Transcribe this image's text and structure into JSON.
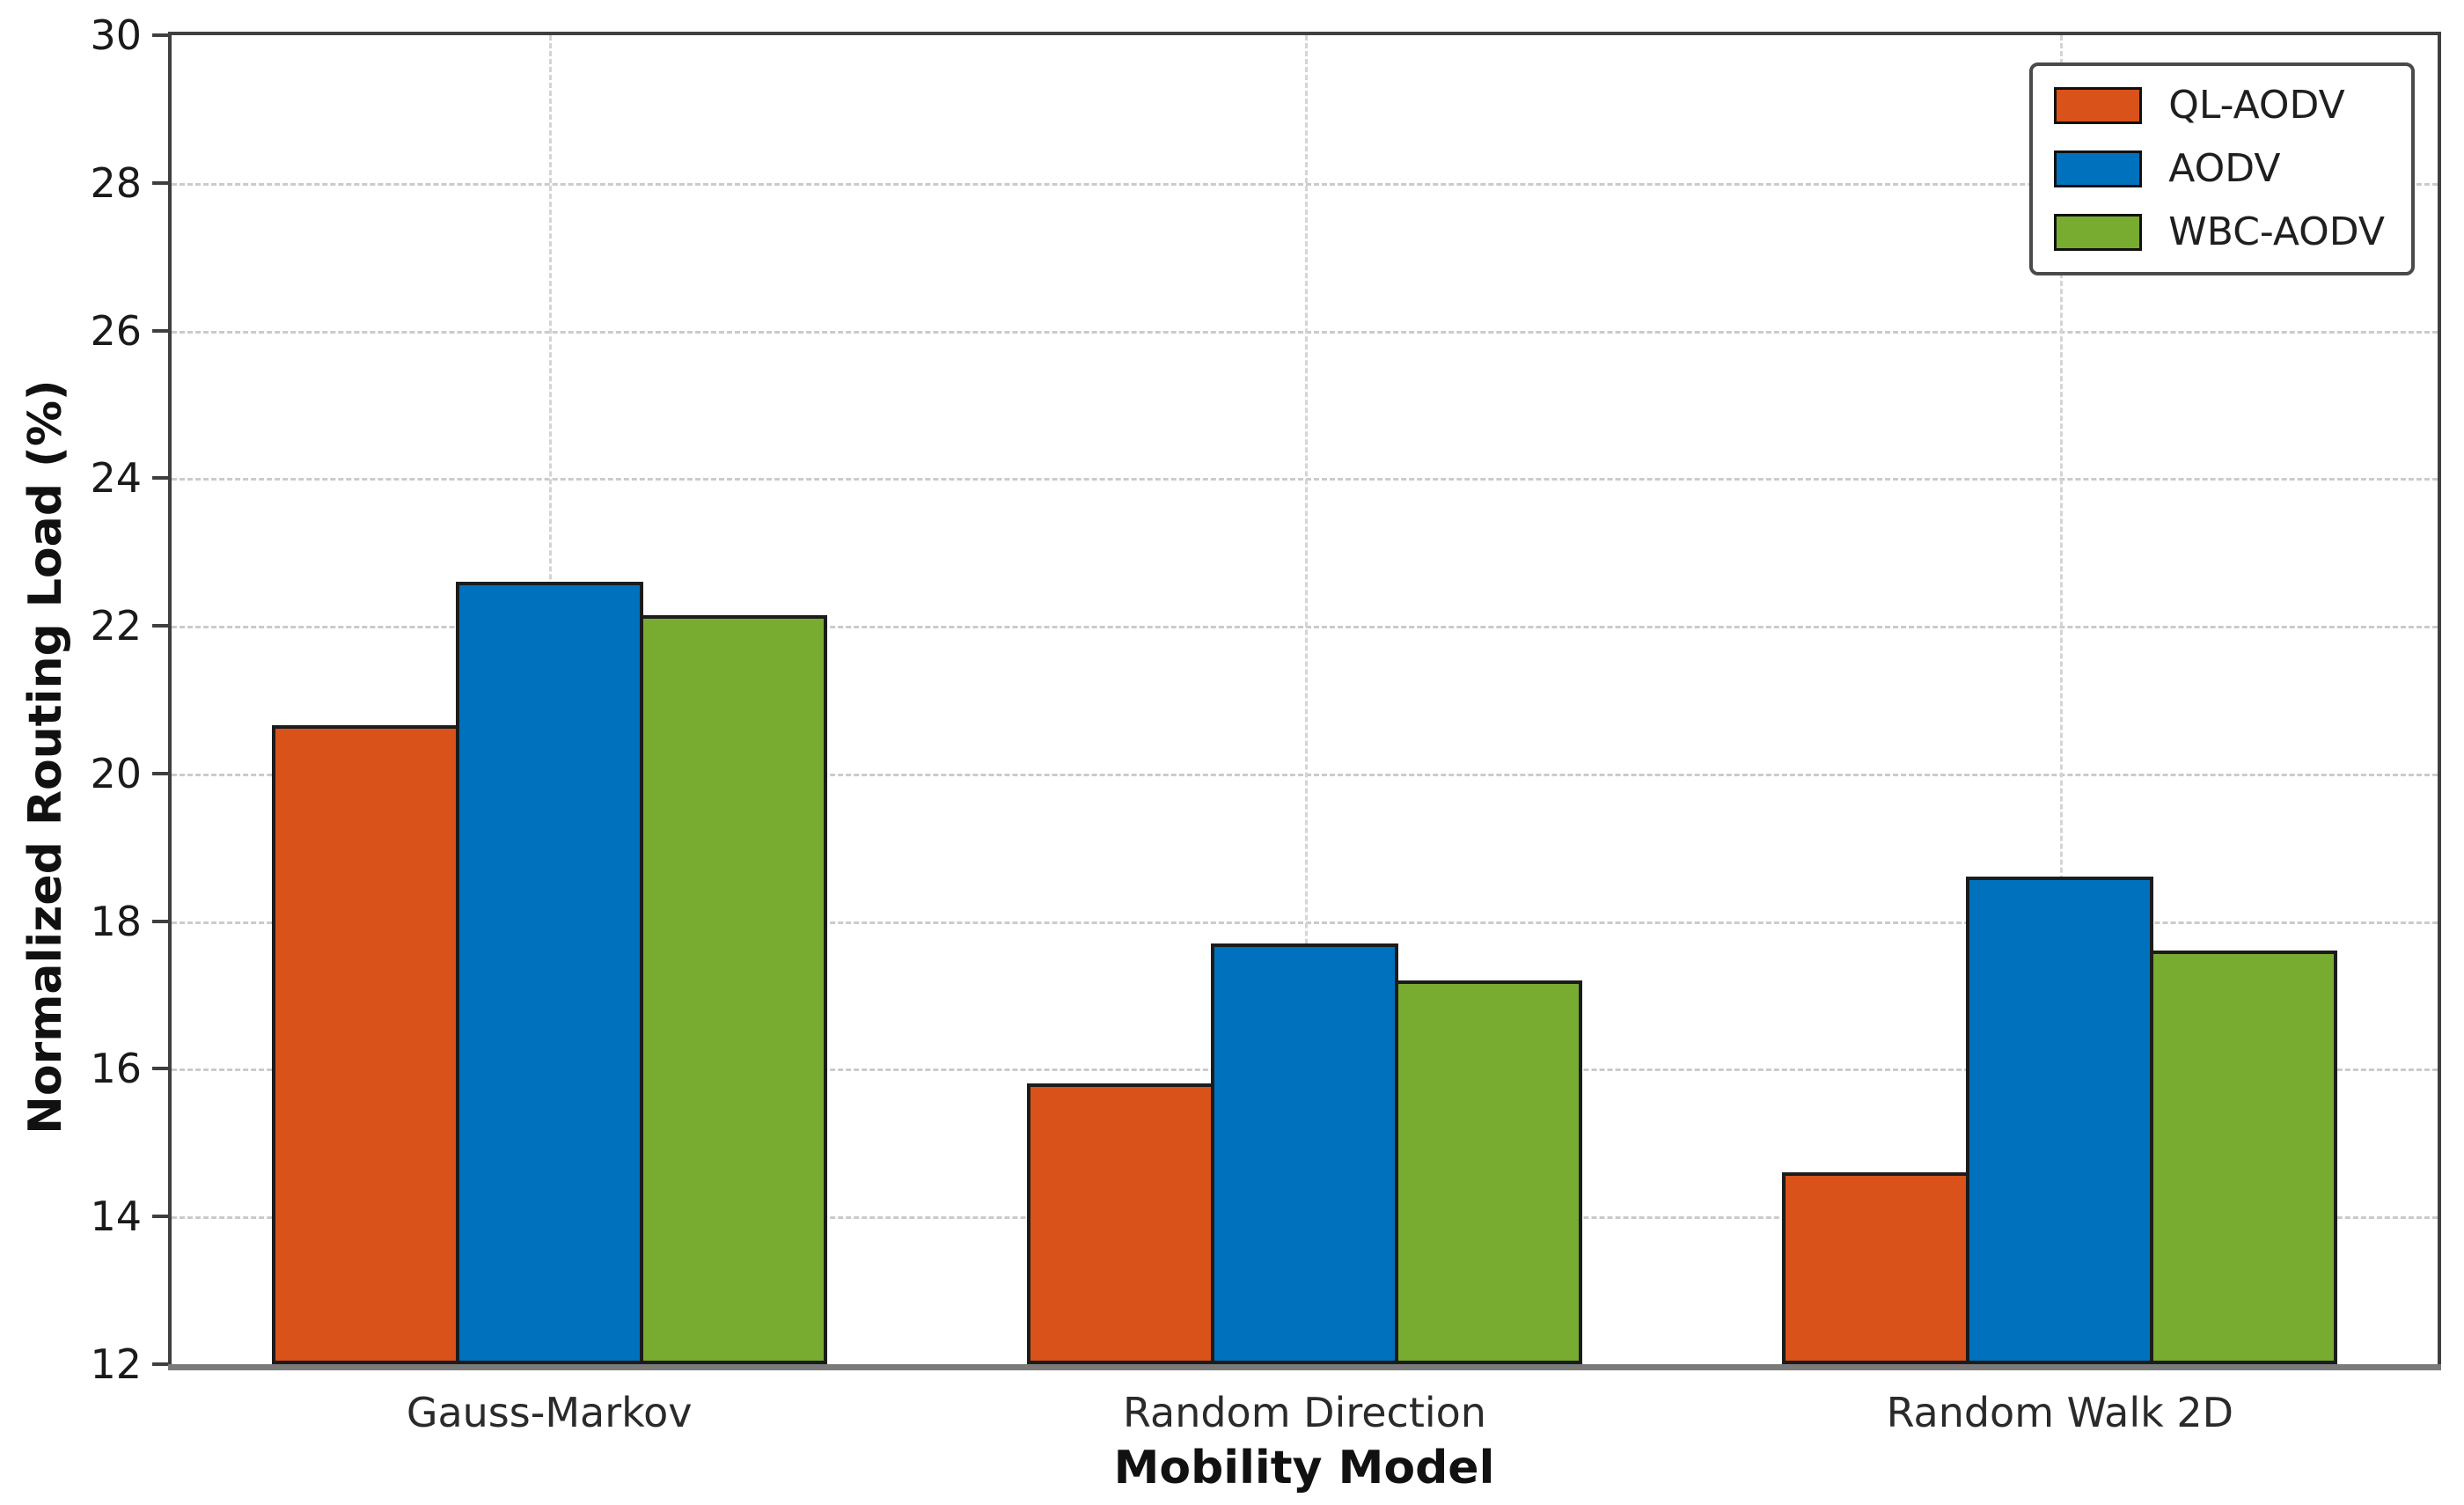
{
  "chart_data": {
    "type": "bar",
    "title": "",
    "xlabel": "Mobility Model",
    "ylabel": "Normalized Routing Load (%)",
    "categories": [
      "Gauss-Markov",
      "Random Direction",
      "Random Walk 2D"
    ],
    "series": [
      {
        "name": "QL-AODV",
        "color": "#d8521a",
        "values": [
          20.65,
          15.8,
          14.6
        ]
      },
      {
        "name": "AODV",
        "color": "#0072bd",
        "values": [
          22.6,
          17.7,
          18.6
        ]
      },
      {
        "name": "WBC-AODV",
        "color": "#77ac30",
        "values": [
          22.15,
          17.2,
          17.6
        ]
      }
    ],
    "ylim": [
      12,
      30
    ],
    "yticks": [
      12,
      14,
      16,
      18,
      20,
      22,
      24,
      26,
      28,
      30
    ],
    "grid": true,
    "grid_style": "dashed",
    "legend_position": "upper-right",
    "bar_edge_color": "#1c1c1c"
  }
}
